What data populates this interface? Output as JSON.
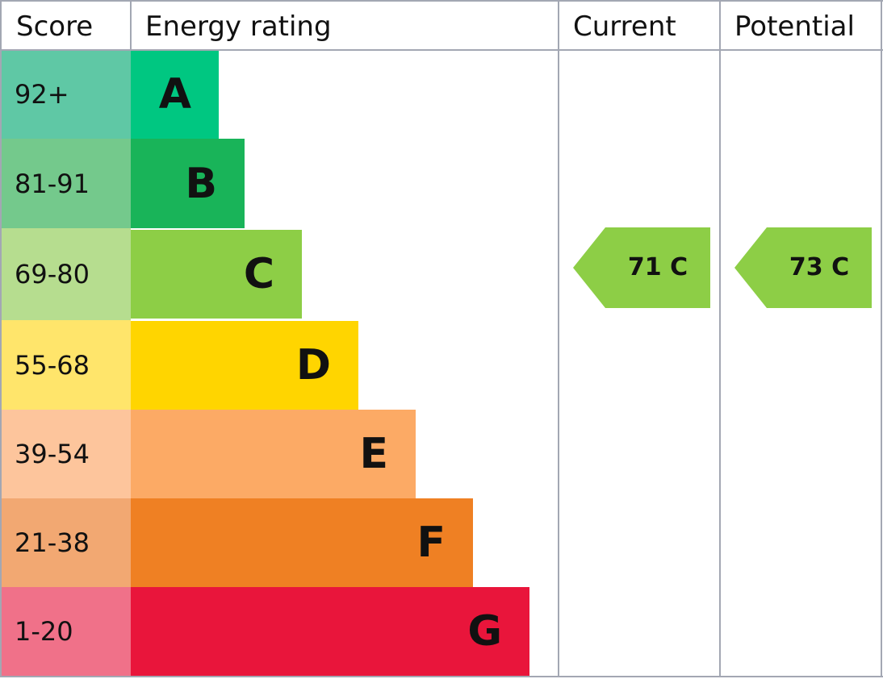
{
  "header": {
    "score": "Score",
    "rating": "Energy rating",
    "current": "Current",
    "potential": "Potential"
  },
  "bands": [
    {
      "score": "92+",
      "letter": "A"
    },
    {
      "score": "81-91",
      "letter": "B"
    },
    {
      "score": "69-80",
      "letter": "C"
    },
    {
      "score": "55-68",
      "letter": "D"
    },
    {
      "score": "39-54",
      "letter": "E"
    },
    {
      "score": "21-38",
      "letter": "F"
    },
    {
      "score": "1-20",
      "letter": "G"
    }
  ],
  "current": "71 C",
  "potential": "73 C"
}
